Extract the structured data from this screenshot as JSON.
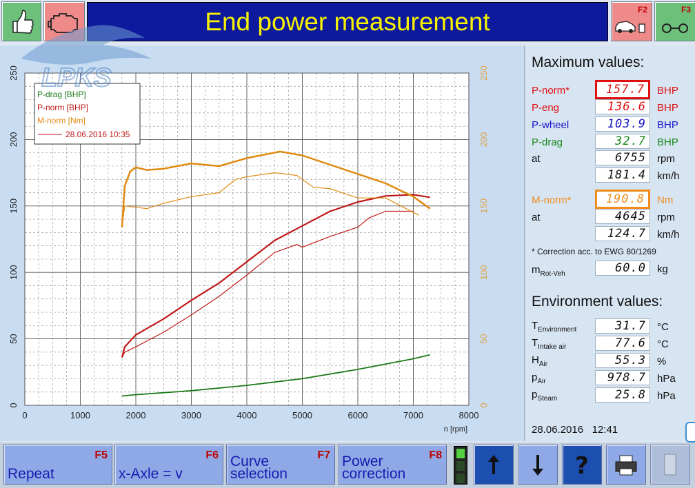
{
  "header": {
    "title": "End power measurement",
    "f2_key": "F2",
    "f3_key": "F3"
  },
  "watermark": {
    "text": "LPKS"
  },
  "chart_data": {
    "type": "line",
    "x_range": [
      0,
      8000
    ],
    "y_left_range": [
      0,
      250
    ],
    "y_right_range": [
      0,
      250
    ],
    "x_ticks": [
      "0",
      "1000",
      "2000",
      "3000",
      "4000",
      "5000",
      "6000",
      "7000",
      "8000"
    ],
    "y_ticks": [
      "0",
      "50",
      "100",
      "150",
      "200",
      "250"
    ],
    "xlabel": "n [rpm]",
    "grid": true,
    "legend": {
      "placement": "top-left",
      "entries": [
        {
          "label": "P-drag [BHP]",
          "color": "#1a7a1a"
        },
        {
          "label": "P-norm [BHP]",
          "color": "#c01818"
        },
        {
          "label": "M-norm [Nm]",
          "color": "#e08a10"
        }
      ],
      "reference_label": "28.06.2016 10:35",
      "reference_color": "#c01818"
    },
    "series": [
      {
        "name": "P-norm [BHP]",
        "color": "#c01818",
        "width": 2.2,
        "points": [
          [
            1750,
            36
          ],
          [
            1800,
            44
          ],
          [
            2000,
            53
          ],
          [
            2500,
            65
          ],
          [
            3000,
            79
          ],
          [
            3500,
            92
          ],
          [
            4000,
            108
          ],
          [
            4500,
            124
          ],
          [
            5000,
            135
          ],
          [
            5500,
            146
          ],
          [
            6000,
            153
          ],
          [
            6500,
            157.5
          ],
          [
            7000,
            158.5
          ],
          [
            7300,
            156.5
          ]
        ]
      },
      {
        "name": "P-norm 28.06.2016 10:35",
        "color": "#c01818",
        "width": 1.2,
        "points": [
          [
            1750,
            36
          ],
          [
            1800,
            40
          ],
          [
            2000,
            44
          ],
          [
            2500,
            55
          ],
          [
            3000,
            68
          ],
          [
            3500,
            82
          ],
          [
            4000,
            98
          ],
          [
            4500,
            115
          ],
          [
            4900,
            121
          ],
          [
            5000,
            119
          ],
          [
            5500,
            127
          ],
          [
            6000,
            134
          ],
          [
            6200,
            141
          ],
          [
            6500,
            146
          ],
          [
            7000,
            146
          ]
        ]
      },
      {
        "name": "P-drag [BHP]",
        "color": "#1a7a1a",
        "width": 1.8,
        "points": [
          [
            1750,
            7
          ],
          [
            2000,
            8
          ],
          [
            3000,
            11
          ],
          [
            4000,
            15
          ],
          [
            5000,
            20
          ],
          [
            6000,
            27
          ],
          [
            7000,
            35
          ],
          [
            7300,
            38
          ]
        ]
      },
      {
        "name": "M-norm [Nm]",
        "color": "#e08a10",
        "width": 2.5,
        "points": [
          [
            1750,
            134
          ],
          [
            1800,
            165
          ],
          [
            1900,
            176
          ],
          [
            2000,
            179
          ],
          [
            2200,
            177
          ],
          [
            2500,
            178
          ],
          [
            3000,
            182
          ],
          [
            3500,
            180
          ],
          [
            4000,
            186
          ],
          [
            4600,
            191
          ],
          [
            5000,
            188
          ],
          [
            5500,
            181
          ],
          [
            6000,
            174
          ],
          [
            6500,
            167
          ],
          [
            7000,
            157
          ],
          [
            7300,
            148
          ]
        ]
      },
      {
        "name": "M-norm 28.06.2016 10:35",
        "color": "#e08a10",
        "width": 1.2,
        "points": [
          [
            1750,
            134
          ],
          [
            1800,
            150
          ],
          [
            2000,
            149
          ],
          [
            2200,
            148
          ],
          [
            2500,
            152
          ],
          [
            3000,
            157
          ],
          [
            3500,
            160
          ],
          [
            3800,
            170
          ],
          [
            4000,
            172
          ],
          [
            4500,
            175
          ],
          [
            4900,
            173
          ],
          [
            5200,
            164
          ],
          [
            5500,
            163
          ],
          [
            6000,
            156
          ],
          [
            6500,
            156
          ],
          [
            7100,
            143
          ]
        ]
      }
    ]
  },
  "max_values": {
    "heading": "Maximum values:",
    "rows": [
      {
        "label": "P-norm*",
        "value": "157.7",
        "unit": "BHP",
        "color": "#e01010",
        "highlight": "#e01010"
      },
      {
        "label": "P-eng",
        "value": "136.6",
        "unit": "BHP",
        "color": "#e01010"
      },
      {
        "label": "P-wheel",
        "value": "103.9",
        "unit": "BHP",
        "color": "#1515c8"
      },
      {
        "label": "P-drag",
        "value": "32.7",
        "unit": "BHP",
        "color": "#1a8a1a"
      },
      {
        "label": "at",
        "value": "6755",
        "unit": "rpm",
        "color": "#101010"
      },
      {
        "label": "",
        "value": "181.4",
        "unit": "km/h",
        "color": "#101010"
      },
      {
        "label": "M-norm*",
        "value": "190.8",
        "unit": "Nm",
        "color": "#f08c1c",
        "highlight": "#f08c1c"
      },
      {
        "label": "at",
        "value": "4645",
        "unit": "rpm",
        "color": "#101010"
      },
      {
        "label": "",
        "value": "124.7",
        "unit": "km/h",
        "color": "#101010"
      }
    ],
    "footnote": "* Correction acc. to EWG 80/1269",
    "mass": {
      "label": "m",
      "label_sub": "Rot-Veh",
      "value": "60.0",
      "unit": "kg"
    }
  },
  "environment": {
    "heading": "Environment values:",
    "rows": [
      {
        "label": "T",
        "sub": "Environment",
        "value": "31.7",
        "unit": "°C"
      },
      {
        "label": "T",
        "sub": "Intake air",
        "value": "77.6",
        "unit": "°C"
      },
      {
        "label": "H",
        "sub": "Air",
        "value": "55.3",
        "unit": "%"
      },
      {
        "label": "p",
        "sub": "Air",
        "value": "978.7",
        "unit": "hPa"
      },
      {
        "label": "p",
        "sub": "Steam",
        "value": "25.8",
        "unit": "hPa"
      }
    ]
  },
  "status": {
    "date": "28.06.2016",
    "time": "12:41"
  },
  "footer": {
    "buttons": [
      {
        "label": "Repeat",
        "key": "F5"
      },
      {
        "label": "x-Axle = v",
        "key": "F6"
      },
      {
        "label": "Curve selection",
        "key": "F7"
      },
      {
        "label": "Power correction",
        "key": "F8"
      }
    ]
  }
}
